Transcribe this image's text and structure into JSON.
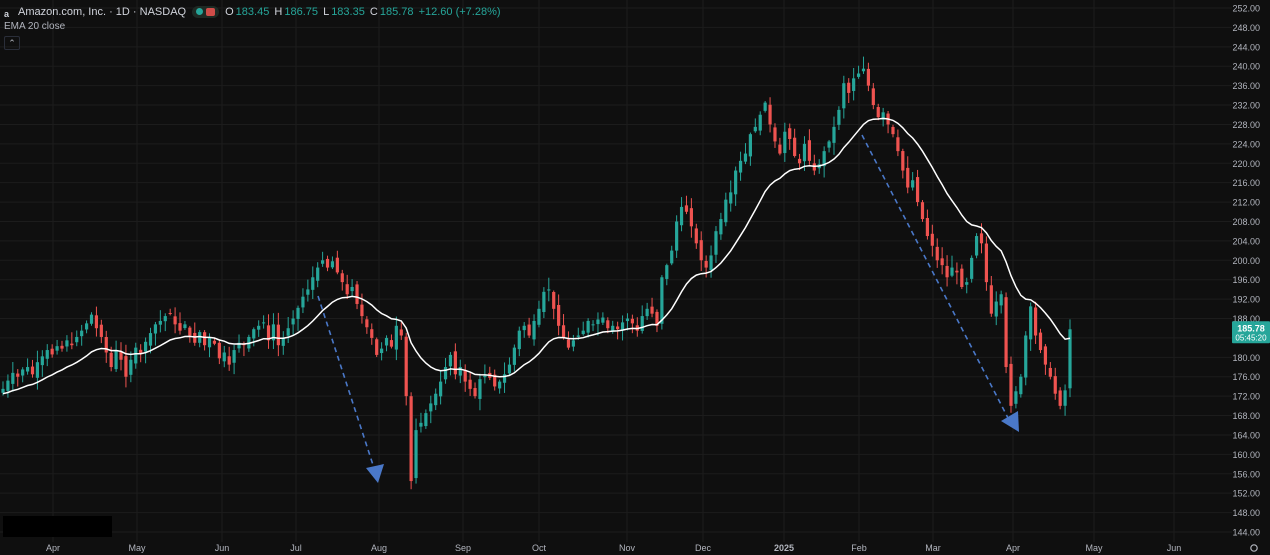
{
  "header": {
    "symbol_title": "Amazon.com, Inc. · 1D · NASDAQ",
    "ohlc": {
      "o_label": "O",
      "o_value": "183.45",
      "h_label": "H",
      "h_value": "186.75",
      "l_label": "L",
      "l_value": "183.35",
      "c_label": "C",
      "c_value": "185.78",
      "change": "+12.60 (+7.28%)"
    },
    "indicator_label": "EMA 20 close"
  },
  "price_badge": {
    "price": "185.78",
    "countdown": "05:45:20"
  },
  "colors": {
    "background": "#0f0f0f",
    "up": "#26a69a",
    "down": "#ef5350",
    "ema": "#ffffff",
    "arrow": "#4a78c8",
    "grid": "#1c1c1c",
    "axis_text": "#b2b5be"
  },
  "chart_data": {
    "type": "candlestick",
    "y_axis": {
      "min": 144,
      "max": 252,
      "step": 4,
      "ticks": [
        "252.00",
        "248.00",
        "244.00",
        "240.00",
        "236.00",
        "232.00",
        "228.00",
        "224.00",
        "220.00",
        "216.00",
        "212.00",
        "208.00",
        "204.00",
        "200.00",
        "196.00",
        "192.00",
        "188.00",
        "184.00",
        "180.00",
        "176.00",
        "172.00",
        "168.00",
        "164.00",
        "160.00",
        "156.00",
        "152.00",
        "148.00",
        "144.00"
      ]
    },
    "x_axis": {
      "labels": [
        "Apr",
        "May",
        "Jun",
        "Jul",
        "Aug",
        "Sep",
        "Oct",
        "Nov",
        "Dec",
        "2025",
        "Feb",
        "Mar",
        "Apr",
        "May",
        "Jun"
      ]
    },
    "last_close": 185.78,
    "ema_period": 20,
    "closes": [
      173.5,
      175.2,
      176.8,
      176.0,
      177.5,
      178.0,
      176.5,
      179.0,
      180.2,
      181.5,
      180.6,
      182.3,
      181.8,
      183.5,
      182.5,
      184.2,
      185.5,
      187.0,
      188.8,
      186.0,
      184.2,
      181.0,
      178.0,
      181.5,
      179.5,
      176.0,
      179.5,
      182.0,
      180.8,
      183.2,
      185.0,
      186.8,
      187.5,
      188.5,
      189.0,
      186.8,
      185.5,
      186.8,
      184.5,
      183.0,
      185.2,
      182.5,
      184.0,
      182.8,
      179.8,
      181.0,
      178.5,
      181.5,
      183.0,
      182.5,
      184.2,
      185.8,
      186.5,
      187.2,
      183.5,
      186.8,
      182.5,
      184.0,
      186.0,
      188.0,
      190.2,
      192.5,
      194.0,
      196.5,
      198.5,
      200.0,
      198.5,
      199.8,
      197.5,
      195.5,
      193.0,
      194.5,
      191.0,
      188.5,
      186.2,
      184.0,
      180.5,
      181.8,
      184.0,
      182.2,
      186.5,
      184.5,
      172.0,
      154.5,
      165.0,
      166.5,
      168.5,
      170.5,
      172.5,
      175.0,
      178.0,
      180.5,
      176.5,
      178.0,
      175.0,
      173.5,
      172.0,
      175.5,
      176.2,
      175.8,
      174.0,
      175.0,
      176.5,
      178.5,
      182.0,
      185.5,
      186.5,
      184.5,
      187.5,
      190.0,
      193.5,
      194.0,
      190.0,
      186.5,
      184.0,
      182.0,
      183.5,
      184.5,
      185.5,
      187.5,
      186.8,
      187.8,
      188.2,
      186.0,
      186.5,
      185.8,
      187.2,
      188.0,
      187.0,
      185.5,
      188.5,
      190.0,
      189.0,
      186.5,
      196.5,
      199.0,
      202.0,
      208.0,
      211.0,
      210.0,
      207.0,
      203.5,
      200.0,
      198.5,
      201.0,
      206.0,
      208.5,
      212.5,
      214.0,
      218.5,
      220.5,
      222.0,
      226.0,
      227.5,
      230.0,
      232.5,
      228.0,
      224.5,
      222.0,
      226.5,
      225.0,
      221.5,
      220.0,
      224.0,
      220.5,
      218.5,
      219.8,
      222.5,
      224.5,
      227.5,
      231.0,
      236.5,
      234.5,
      237.5,
      238.5,
      239.5,
      236.0,
      232.0,
      229.5,
      230.5,
      228.0,
      226.0,
      222.5,
      218.5,
      215.0,
      216.5,
      212.0,
      208.5,
      205.0,
      203.0,
      200.0,
      199.0,
      196.5,
      198.5,
      197.5,
      194.5,
      195.5,
      200.5,
      205.0,
      203.5,
      195.5,
      189.0,
      191.5,
      193.0,
      178.0,
      170.0,
      173.0,
      176.0,
      184.5,
      190.5,
      184.5,
      181.5,
      178.5,
      176.0,
      172.5,
      170.0,
      173.2,
      185.78
    ]
  }
}
